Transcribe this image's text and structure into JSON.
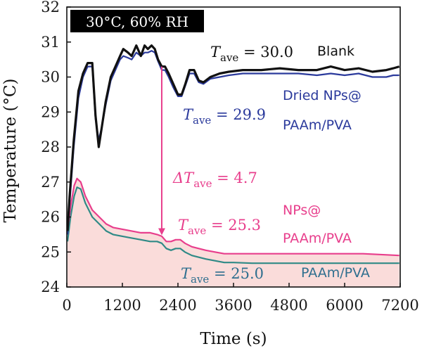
{
  "chart_data": {
    "type": "line",
    "xlabel": "Time (s)",
    "ylabel": "Temperature (°C)",
    "xlim": [
      0,
      7200
    ],
    "ylim": [
      24,
      32
    ],
    "x_ticks": [
      0,
      1200,
      2400,
      3600,
      4800,
      6000,
      7200
    ],
    "y_ticks": [
      24,
      25,
      26,
      27,
      28,
      29,
      30,
      31,
      32
    ],
    "condition": "30°C, 60% RH",
    "colors": {
      "blank": "#111111",
      "dried": "#2b3a9c",
      "nps": "#e83e8c",
      "paam": "#2f8a86",
      "fill": "#f9d6d3"
    },
    "series": [
      {
        "name": "Blank",
        "color": "#111111",
        "points": [
          [
            -20,
            25.6
          ],
          [
            60,
            26.6
          ],
          [
            150,
            28.2
          ],
          [
            250,
            29.6
          ],
          [
            350,
            30.1
          ],
          [
            450,
            30.4
          ],
          [
            550,
            30.4
          ],
          [
            620,
            28.9
          ],
          [
            690,
            28.0
          ],
          [
            760,
            28.6
          ],
          [
            840,
            29.3
          ],
          [
            950,
            30.0
          ],
          [
            1050,
            30.3
          ],
          [
            1150,
            30.6
          ],
          [
            1220,
            30.8
          ],
          [
            1320,
            30.7
          ],
          [
            1400,
            30.6
          ],
          [
            1500,
            30.9
          ],
          [
            1600,
            30.6
          ],
          [
            1680,
            30.9
          ],
          [
            1750,
            30.8
          ],
          [
            1830,
            30.9
          ],
          [
            1900,
            30.8
          ],
          [
            1970,
            30.5
          ],
          [
            2050,
            30.3
          ],
          [
            2120,
            30.3
          ],
          [
            2200,
            30.1
          ],
          [
            2300,
            29.8
          ],
          [
            2400,
            29.5
          ],
          [
            2480,
            29.5
          ],
          [
            2560,
            29.8
          ],
          [
            2650,
            30.2
          ],
          [
            2750,
            30.2
          ],
          [
            2850,
            29.9
          ],
          [
            2950,
            29.85
          ],
          [
            3100,
            30.0
          ],
          [
            3300,
            30.1
          ],
          [
            3500,
            30.15
          ],
          [
            3800,
            30.2
          ],
          [
            4200,
            30.2
          ],
          [
            4600,
            30.25
          ],
          [
            5000,
            30.2
          ],
          [
            5400,
            30.2
          ],
          [
            5700,
            30.3
          ],
          [
            6000,
            30.2
          ],
          [
            6300,
            30.25
          ],
          [
            6600,
            30.15
          ],
          [
            6900,
            30.2
          ],
          [
            7050,
            30.25
          ],
          [
            7180,
            30.3
          ]
        ]
      },
      {
        "name": "Dried NPs@PAAm/PVA",
        "color": "#2b3a9c",
        "points": [
          [
            -20,
            25.5
          ],
          [
            60,
            26.4
          ],
          [
            150,
            28.0
          ],
          [
            250,
            29.4
          ],
          [
            350,
            30.0
          ],
          [
            450,
            30.3
          ],
          [
            550,
            30.3
          ],
          [
            620,
            28.8
          ],
          [
            690,
            28.2
          ],
          [
            760,
            28.6
          ],
          [
            840,
            29.2
          ],
          [
            950,
            29.9
          ],
          [
            1050,
            30.2
          ],
          [
            1150,
            30.5
          ],
          [
            1220,
            30.6
          ],
          [
            1320,
            30.55
          ],
          [
            1400,
            30.5
          ],
          [
            1500,
            30.7
          ],
          [
            1600,
            30.6
          ],
          [
            1680,
            30.7
          ],
          [
            1750,
            30.7
          ],
          [
            1830,
            30.75
          ],
          [
            1900,
            30.7
          ],
          [
            1970,
            30.45
          ],
          [
            2050,
            30.2
          ],
          [
            2120,
            30.2
          ],
          [
            2200,
            30.0
          ],
          [
            2300,
            29.7
          ],
          [
            2400,
            29.45
          ],
          [
            2480,
            29.45
          ],
          [
            2560,
            29.75
          ],
          [
            2650,
            30.1
          ],
          [
            2750,
            30.1
          ],
          [
            2850,
            29.85
          ],
          [
            2950,
            29.8
          ],
          [
            3100,
            29.95
          ],
          [
            3300,
            30.0
          ],
          [
            3500,
            30.05
          ],
          [
            3800,
            30.1
          ],
          [
            4200,
            30.1
          ],
          [
            4600,
            30.1
          ],
          [
            5000,
            30.1
          ],
          [
            5400,
            30.05
          ],
          [
            5700,
            30.1
          ],
          [
            6000,
            30.05
          ],
          [
            6300,
            30.1
          ],
          [
            6600,
            30.0
          ],
          [
            6900,
            30.0
          ],
          [
            7050,
            30.05
          ],
          [
            7180,
            30.05
          ]
        ]
      },
      {
        "name": "NPs@PAAm/PVA",
        "color": "#e83e8c",
        "points": [
          [
            -20,
            25.6
          ],
          [
            80,
            26.3
          ],
          [
            160,
            26.9
          ],
          [
            220,
            27.1
          ],
          [
            300,
            27.0
          ],
          [
            400,
            26.6
          ],
          [
            550,
            26.2
          ],
          [
            700,
            26.0
          ],
          [
            850,
            25.8
          ],
          [
            1000,
            25.7
          ],
          [
            1200,
            25.65
          ],
          [
            1400,
            25.6
          ],
          [
            1600,
            25.55
          ],
          [
            1800,
            25.55
          ],
          [
            1950,
            25.5
          ],
          [
            2050,
            25.45
          ],
          [
            2150,
            25.3
          ],
          [
            2250,
            25.3
          ],
          [
            2350,
            25.35
          ],
          [
            2450,
            25.35
          ],
          [
            2550,
            25.25
          ],
          [
            2700,
            25.15
          ],
          [
            2850,
            25.1
          ],
          [
            3000,
            25.05
          ],
          [
            3200,
            25.0
          ],
          [
            3400,
            24.95
          ],
          [
            3600,
            24.95
          ],
          [
            4000,
            24.95
          ],
          [
            4800,
            24.95
          ],
          [
            5600,
            24.95
          ],
          [
            6400,
            24.95
          ],
          [
            7180,
            24.9
          ]
        ]
      },
      {
        "name": "PAAm/PVA",
        "color": "#2f8a86",
        "points": [
          [
            -20,
            25.3
          ],
          [
            80,
            26.0
          ],
          [
            160,
            26.6
          ],
          [
            220,
            26.85
          ],
          [
            300,
            26.8
          ],
          [
            400,
            26.4
          ],
          [
            550,
            26.0
          ],
          [
            700,
            25.8
          ],
          [
            850,
            25.6
          ],
          [
            1000,
            25.5
          ],
          [
            1200,
            25.45
          ],
          [
            1400,
            25.4
          ],
          [
            1600,
            25.35
          ],
          [
            1800,
            25.3
          ],
          [
            1950,
            25.3
          ],
          [
            2050,
            25.25
          ],
          [
            2150,
            25.1
          ],
          [
            2250,
            25.05
          ],
          [
            2350,
            25.1
          ],
          [
            2450,
            25.1
          ],
          [
            2550,
            25.0
          ],
          [
            2700,
            24.9
          ],
          [
            2850,
            24.85
          ],
          [
            3000,
            24.8
          ],
          [
            3200,
            24.75
          ],
          [
            3400,
            24.7
          ],
          [
            3600,
            24.7
          ],
          [
            4000,
            24.68
          ],
          [
            4800,
            24.68
          ],
          [
            5600,
            24.68
          ],
          [
            6400,
            24.68
          ],
          [
            7180,
            24.68
          ]
        ]
      }
    ],
    "annotations": {
      "condition_label": "30°C, 60% RH",
      "blank": {
        "T": "T",
        "sub": "ave",
        "value": " = 30.0",
        "name": "Blank"
      },
      "dried": {
        "T": "T",
        "sub": "ave",
        "value": " = 29.9",
        "line1": "Dried NPs@",
        "line2": "PAAm/PVA"
      },
      "delta": {
        "D": "ΔT",
        "sub": "ave",
        "value": " = 4.7"
      },
      "nps": {
        "T": "T",
        "sub": "ave",
        "value": " = 25.3",
        "line1": "NPs@",
        "line2": "PAAm/PVA"
      },
      "paam": {
        "T": "T",
        "sub": "ave",
        "value": " = 25.0",
        "name": "PAAm/PVA"
      }
    },
    "arrow": {
      "x": 2050,
      "y_from": 30.3,
      "y_to": 25.5
    }
  }
}
